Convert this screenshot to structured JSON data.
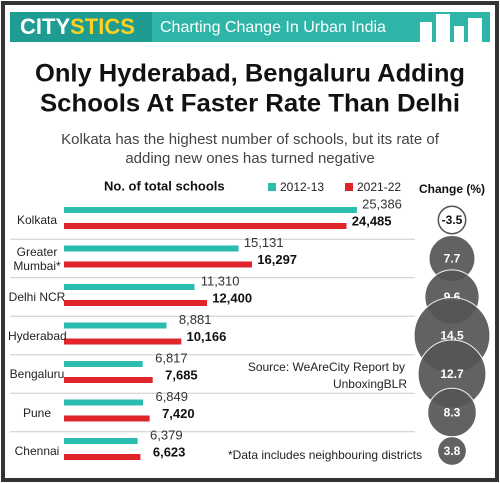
{
  "chart_data": {
    "type": "bar",
    "orientation": "horizontal",
    "brand_parts": [
      "CITY",
      "STICS"
    ],
    "tagline": "Charting Change In Urban India",
    "title": [
      "Only Hyderabad, Bengaluru Adding",
      "Schools At Faster Rate Than Delhi"
    ],
    "subtitle": [
      "Kolkata has the highest number of schools, but its rate of",
      "adding new ones has turned negative"
    ],
    "x_label": "No. of total schools",
    "categories": [
      "Kolkata",
      "Greater Mumbai*",
      "Delhi NCR",
      "Hyderabad",
      "Bengaluru",
      "Pune",
      "Chennai"
    ],
    "series": [
      {
        "name": "2012-13",
        "color": "#2bbcb0",
        "values": [
          25386,
          15131,
          11310,
          8881,
          6817,
          6849,
          6379
        ],
        "value_labels": [
          "25,386",
          "15,131",
          "11,310",
          "8,881",
          "6,817",
          "6,849",
          "6,379"
        ]
      },
      {
        "name": "2021-22",
        "color": "#e0242b",
        "values": [
          24485,
          16297,
          12400,
          10166,
          7685,
          7420,
          6623
        ],
        "value_labels": [
          "24,485",
          "16,297",
          "12,400",
          "10,166",
          "7,685",
          "7,420",
          "6,623"
        ]
      }
    ],
    "xlim": [
      0,
      26000
    ],
    "change": {
      "label": "Change (%)",
      "color": "#555555",
      "values": [
        -3.5,
        7.7,
        9.6,
        14.5,
        12.7,
        8.3,
        3.8
      ]
    },
    "source": [
      "Source: WeAreCity Report by",
      "UnboxingBLR"
    ],
    "footnote": "*Data includes neighbouring districts"
  }
}
